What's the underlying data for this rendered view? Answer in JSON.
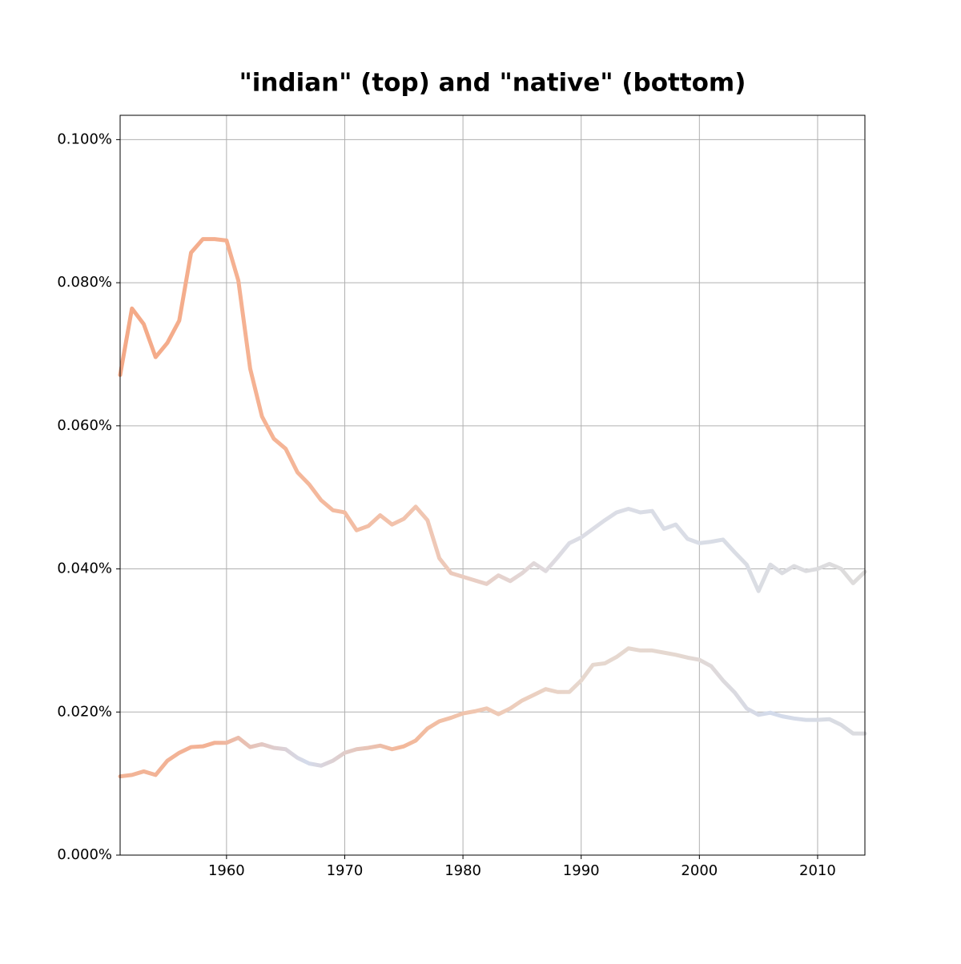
{
  "chart_data": {
    "type": "line",
    "title": "\"indian\" (top) and \"native\" (bottom)",
    "x": [
      1951,
      1952,
      1953,
      1954,
      1955,
      1956,
      1957,
      1958,
      1959,
      1960,
      1961,
      1962,
      1963,
      1964,
      1965,
      1966,
      1967,
      1968,
      1969,
      1970,
      1971,
      1972,
      1973,
      1974,
      1975,
      1976,
      1977,
      1978,
      1979,
      1980,
      1981,
      1982,
      1983,
      1984,
      1985,
      1986,
      1987,
      1988,
      1989,
      1990,
      1991,
      1992,
      1993,
      1994,
      1995,
      1996,
      1997,
      1998,
      1999,
      2000,
      2001,
      2002,
      2003,
      2004,
      2005,
      2006,
      2007,
      2008,
      2009,
      2010,
      2011,
      2012,
      2013,
      2014
    ],
    "series": [
      {
        "values": [
          0.0671,
          0.0764,
          0.0742,
          0.0696,
          0.0716,
          0.0747,
          0.0842,
          0.0861,
          0.0861,
          0.0859,
          0.0803,
          0.068,
          0.0613,
          0.0582,
          0.0568,
          0.0535,
          0.0518,
          0.0496,
          0.0482,
          0.0479,
          0.0454,
          0.046,
          0.0475,
          0.0462,
          0.047,
          0.0487,
          0.0468,
          0.0415,
          0.0394,
          0.0389,
          0.0384,
          0.0379,
          0.0391,
          0.0383,
          0.0394,
          0.0408,
          0.0397,
          0.0416,
          0.0436,
          0.0444,
          0.0456,
          0.0468,
          0.0479,
          0.0484,
          0.0479,
          0.0481,
          0.0456,
          0.0462,
          0.0442,
          0.0436,
          0.0438,
          0.0441,
          0.0423,
          0.0406,
          0.0369,
          0.0406,
          0.0394,
          0.0404,
          0.0397,
          0.04,
          0.0407,
          0.04,
          0.038,
          0.0396
        ],
        "colors": [
          "#f4a987",
          "#f5b394",
          "#f1c5b0",
          "#dcdde5",
          "#d9dde6",
          "#dedcdb"
        ]
      },
      {
        "values": [
          0.011,
          0.0112,
          0.0117,
          0.0112,
          0.0132,
          0.0143,
          0.0151,
          0.0152,
          0.0157,
          0.0157,
          0.0164,
          0.0151,
          0.0155,
          0.015,
          0.0148,
          0.0136,
          0.0128,
          0.0125,
          0.0132,
          0.0143,
          0.0148,
          0.015,
          0.0153,
          0.0148,
          0.0152,
          0.016,
          0.0177,
          0.0187,
          0.0192,
          0.0198,
          0.0201,
          0.0205,
          0.0197,
          0.0205,
          0.0216,
          0.0224,
          0.0232,
          0.0228,
          0.0228,
          0.0244,
          0.0266,
          0.0268,
          0.0277,
          0.0289,
          0.0286,
          0.0286,
          0.0283,
          0.028,
          0.0276,
          0.0273,
          0.0264,
          0.0244,
          0.0227,
          0.0205,
          0.0196,
          0.0199,
          0.0194,
          0.0191,
          0.0189,
          0.0189,
          0.019,
          0.0182,
          0.017,
          0.017
        ],
        "colors": [
          "#f2b497",
          "#f3b295",
          "#d4dbeb",
          "#f3b799",
          "#efcab6",
          "#e6d8cf",
          "#e5d8d0",
          "#d3dbeb",
          "#dcdcdf"
        ]
      }
    ],
    "xlim": [
      1951,
      2014
    ],
    "xticks": [
      1960,
      1970,
      1980,
      1990,
      2000,
      2010
    ],
    "ylim": [
      0,
      0.1034
    ],
    "yticks": [
      {
        "value": 0,
        "label": "0.000%"
      },
      {
        "value": 0.02,
        "label": "0.020%"
      },
      {
        "value": 0.04,
        "label": "0.040%"
      },
      {
        "value": 0.06,
        "label": "0.060%"
      },
      {
        "value": 0.08,
        "label": "0.080%"
      },
      {
        "value": 0.1,
        "label": "0.100%"
      }
    ],
    "grid": true
  }
}
